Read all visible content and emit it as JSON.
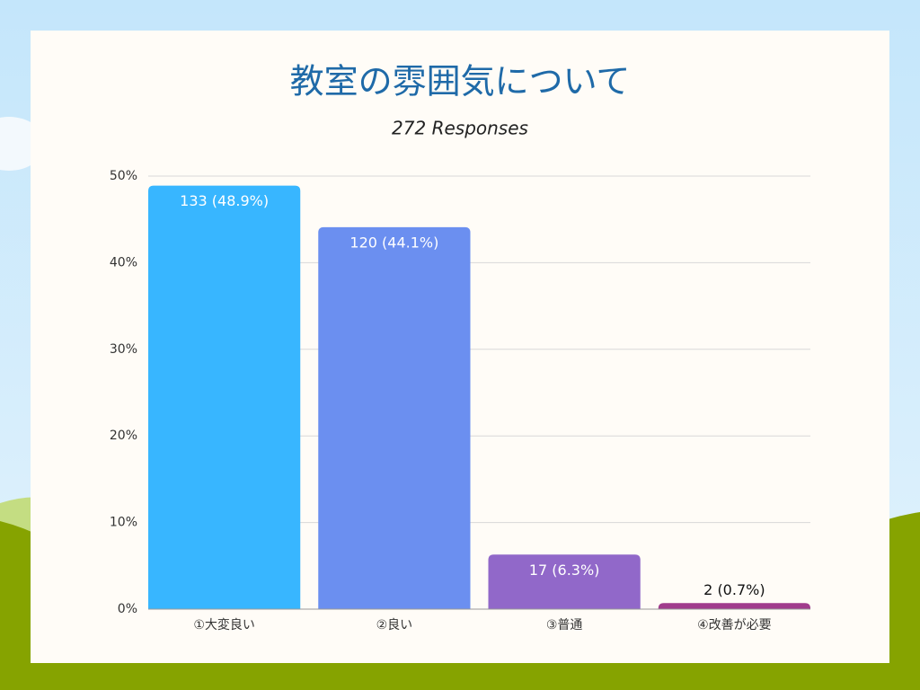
{
  "chart_data": {
    "type": "bar",
    "title": "教室の雰囲気について",
    "subtitle": "272 Responses",
    "categories": [
      "①大変良い",
      "②良い",
      "③普通",
      "④改善が必要"
    ],
    "values": [
      48.9,
      44.1,
      6.3,
      0.7
    ],
    "value_labels": [
      "133 (48.9%)",
      "120 (44.1%)",
      "17 (6.3%)",
      "2 (0.7%)"
    ],
    "colors": [
      "#38b6ff",
      "#6b8ff0",
      "#9168c9",
      "#a03c8c"
    ],
    "ylim": [
      0,
      50
    ],
    "yticks": [
      {
        "value": 0,
        "label": "0%"
      },
      {
        "value": 10,
        "label": "10%"
      },
      {
        "value": 20,
        "label": "20%"
      },
      {
        "value": 30,
        "label": "30%"
      },
      {
        "value": 40,
        "label": "40%"
      },
      {
        "value": 50,
        "label": "50%"
      }
    ],
    "grid": true
  }
}
